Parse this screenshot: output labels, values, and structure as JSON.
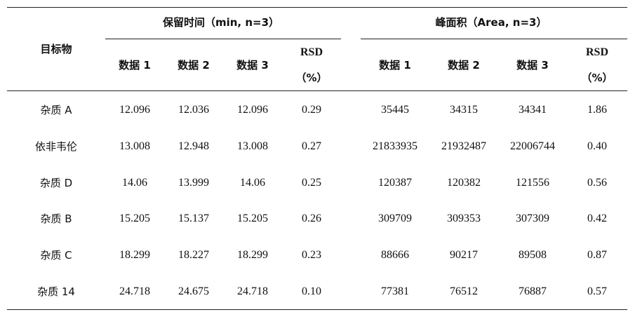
{
  "table": {
    "target_header": "目标物",
    "retention_group": "保留时间（min, n=3）",
    "area_group": "峰面积（Area, n=3）",
    "sub_headers": [
      "数据 1",
      "数据 2",
      "数据 3"
    ],
    "rsd_label": "RSD",
    "rsd_unit": "（%）",
    "rows": [
      {
        "name": "杂质 A",
        "rt": [
          "12.096",
          "12.036",
          "12.096",
          "0.29"
        ],
        "area": [
          "35445",
          "34315",
          "34341",
          "1.86"
        ]
      },
      {
        "name": "依非韦伦",
        "rt": [
          "13.008",
          "12.948",
          "13.008",
          "0.27"
        ],
        "area": [
          "21833935",
          "21932487",
          "22006744",
          "0.40"
        ]
      },
      {
        "name": "杂质 D",
        "rt": [
          "14.06",
          "13.999",
          "14.06",
          "0.25"
        ],
        "area": [
          "120387",
          "120382",
          "121556",
          "0.56"
        ]
      },
      {
        "name": "杂质 B",
        "rt": [
          "15.205",
          "15.137",
          "15.205",
          "0.26"
        ],
        "area": [
          "309709",
          "309353",
          "307309",
          "0.42"
        ]
      },
      {
        "name": "杂质 C",
        "rt": [
          "18.299",
          "18.227",
          "18.299",
          "0.23"
        ],
        "area": [
          "88666",
          "90217",
          "89508",
          "0.87"
        ]
      },
      {
        "name": "杂质 14",
        "rt": [
          "24.718",
          "24.675",
          "24.718",
          "0.10"
        ],
        "area": [
          "77381",
          "76512",
          "76887",
          "0.57"
        ]
      }
    ]
  }
}
